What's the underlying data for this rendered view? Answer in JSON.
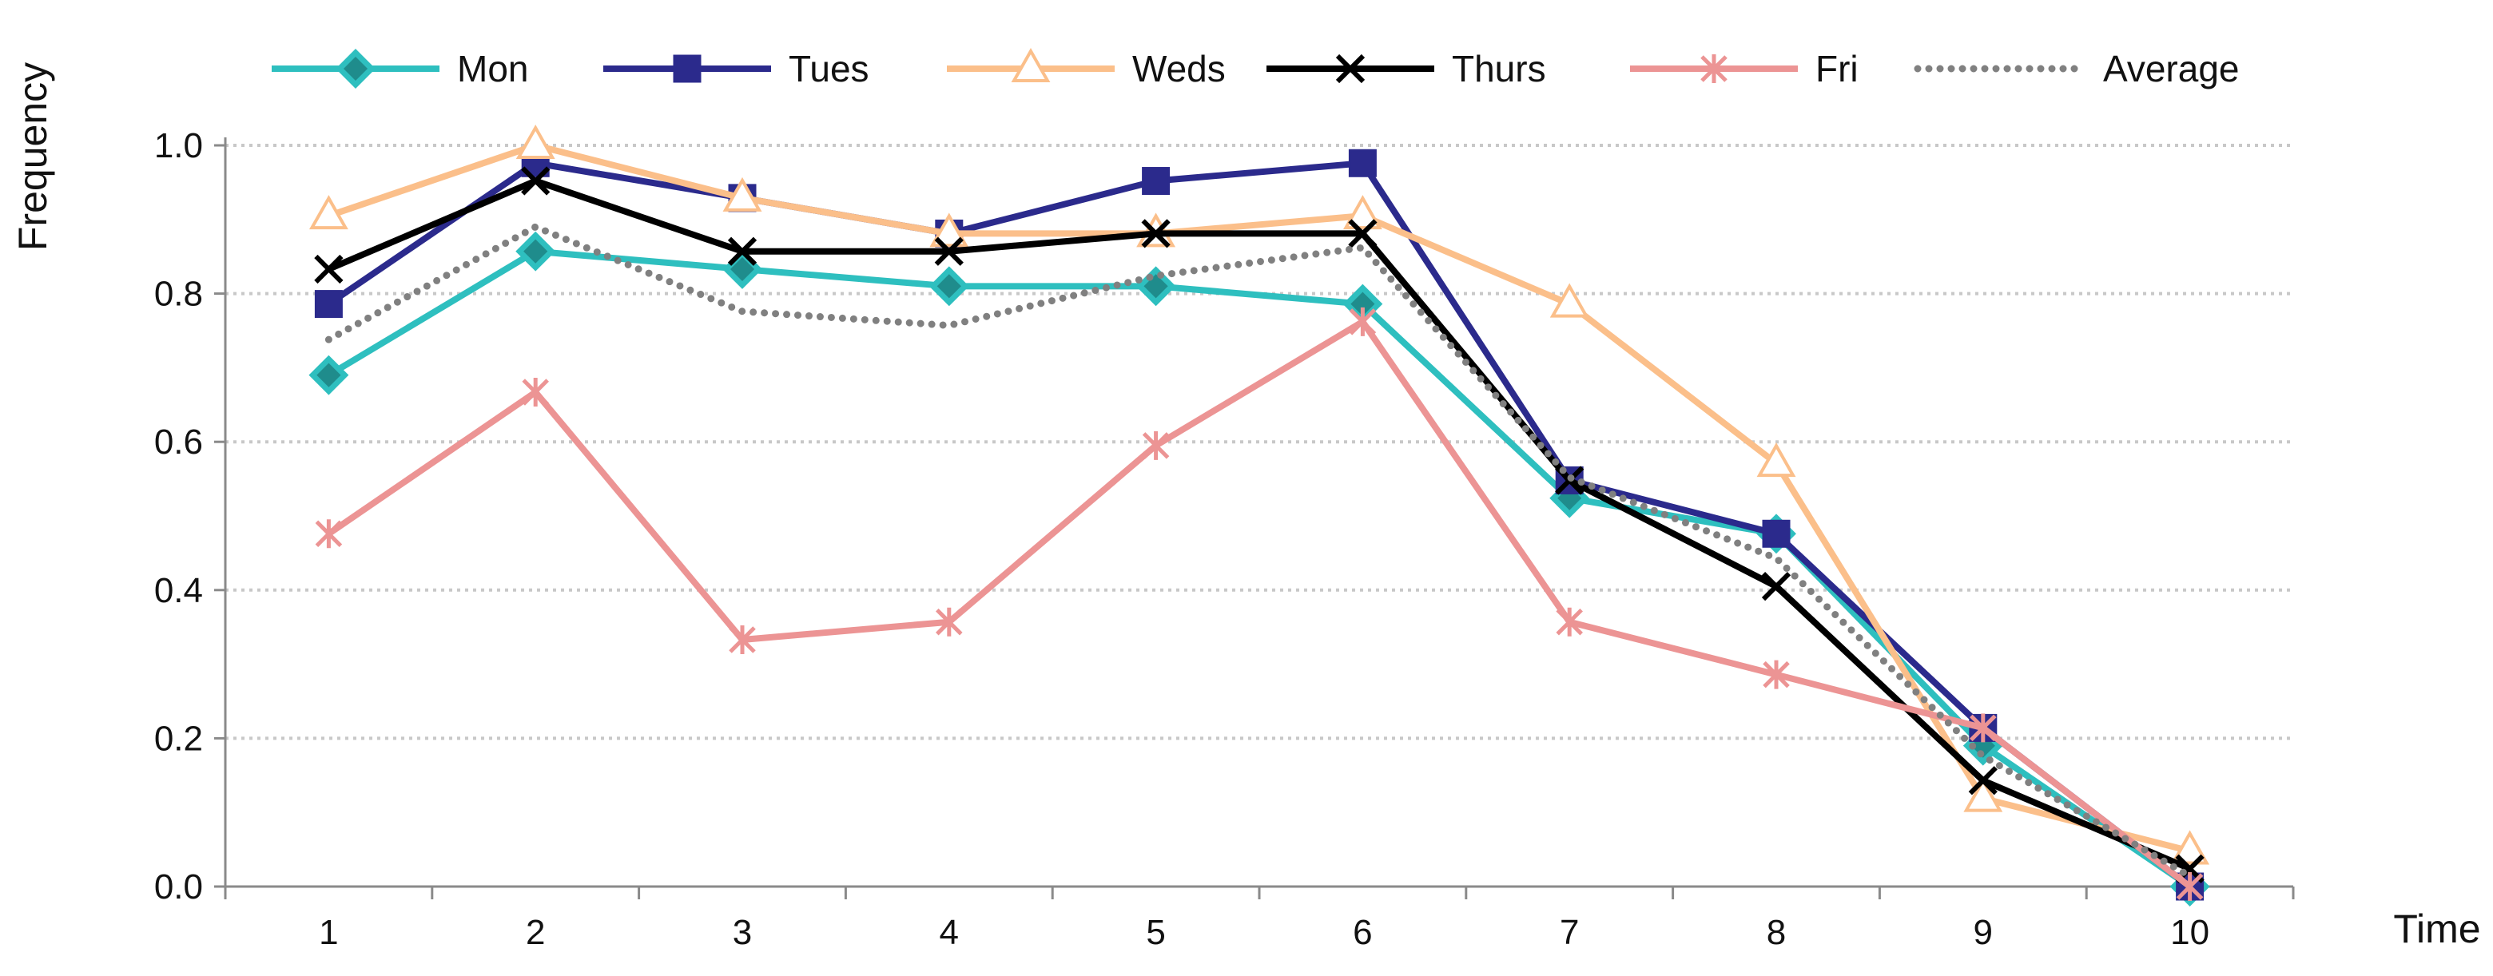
{
  "chart_data": {
    "type": "line",
    "title": "",
    "xlabel": "Time",
    "ylabel": "Frequency",
    "x": [
      1,
      2,
      3,
      4,
      5,
      6,
      7,
      8,
      9,
      10
    ],
    "ylim": [
      0,
      1.0
    ],
    "yticks": [
      "0.0",
      "0.2",
      "0.4",
      "0.6",
      "0.8",
      "1.0"
    ],
    "grid": "horizontal dotted",
    "legend_position": "top",
    "series": [
      {
        "name": "Mon",
        "color": "#2ebfbf",
        "marker": "diamond",
        "line": "solid",
        "values": [
          0.69,
          0.857,
          0.833,
          0.81,
          0.81,
          0.786,
          0.524,
          0.476,
          0.19,
          0.0
        ]
      },
      {
        "name": "Tues",
        "color": "#2b2a8c",
        "marker": "square",
        "line": "solid",
        "values": [
          0.786,
          0.976,
          0.929,
          0.881,
          0.952,
          0.976,
          0.548,
          0.476,
          0.214,
          0.0
        ]
      },
      {
        "name": "Weds",
        "color": "#fbbf8a",
        "marker": "triangle",
        "line": "solid",
        "values": [
          0.905,
          1.0,
          0.929,
          0.881,
          0.881,
          0.905,
          0.786,
          0.571,
          0.119,
          0.048
        ]
      },
      {
        "name": "Thurs",
        "color": "#000000",
        "marker": "x",
        "line": "solid",
        "values": [
          0.833,
          0.952,
          0.857,
          0.857,
          0.881,
          0.881,
          0.548,
          0.405,
          0.143,
          0.024
        ]
      },
      {
        "name": "Fri",
        "color": "#ec9494",
        "marker": "asterisk",
        "line": "solid",
        "values": [
          0.476,
          0.667,
          0.333,
          0.357,
          0.595,
          0.762,
          0.357,
          0.286,
          0.214,
          0.0
        ]
      },
      {
        "name": "Average",
        "color": "#808080",
        "marker": "none",
        "line": "dotted",
        "values": [
          0.738,
          0.89,
          0.776,
          0.757,
          0.824,
          0.862,
          0.552,
          0.443,
          0.176,
          0.014
        ]
      }
    ]
  }
}
